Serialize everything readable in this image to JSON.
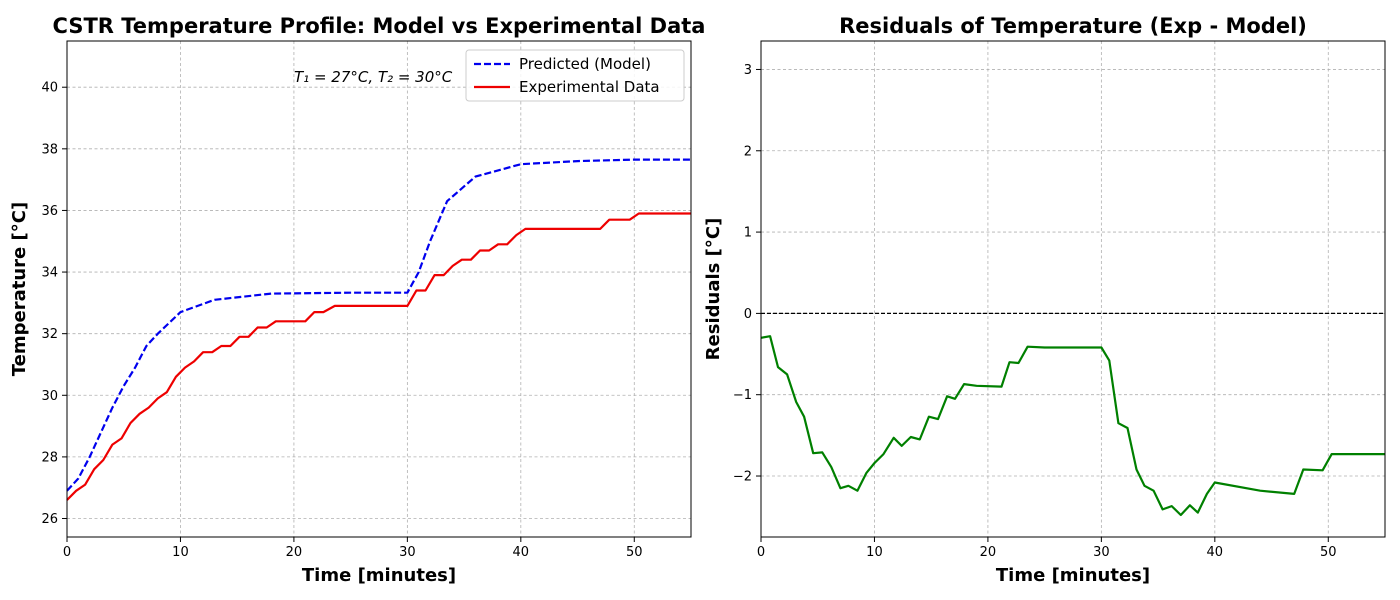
{
  "chart_data": [
    {
      "type": "line",
      "title": "CSTR Temperature Profile: Model vs Experimental Data",
      "xlabel": "Time [minutes]",
      "ylabel": "Temperature [°C]",
      "xlim": [
        0,
        55
      ],
      "ylim": [
        25.4,
        41.5
      ],
      "xticks": [
        0,
        10,
        20,
        30,
        40,
        50
      ],
      "yticks": [
        26,
        28,
        30,
        32,
        34,
        36,
        38,
        40
      ],
      "grid": true,
      "legend": "top-right",
      "annotation": "T₁ = 27°C, T₂ = 30°C",
      "series": [
        {
          "name": "Predicted (Model)",
          "color": "#0000ee",
          "style": "dashed",
          "x": [
            0,
            1,
            2,
            3,
            4,
            5,
            6,
            7,
            8,
            10,
            13,
            18,
            25,
            30,
            31,
            32,
            33.5,
            36,
            40,
            45,
            50,
            55
          ],
          "y": [
            26.9,
            27.3,
            28.0,
            28.8,
            29.6,
            30.3,
            30.9,
            31.6,
            32.0,
            32.7,
            33.1,
            33.3,
            33.33,
            33.33,
            34.0,
            35.0,
            36.3,
            37.1,
            37.5,
            37.6,
            37.65,
            37.65
          ]
        },
        {
          "name": "Experimental Data",
          "color": "#ee0000",
          "style": "solid",
          "x": [
            0,
            0.8,
            1.6,
            2.4,
            3.2,
            4.0,
            4.8,
            5.6,
            6.4,
            7.2,
            8.0,
            8.8,
            9.6,
            10.4,
            11.2,
            12.0,
            12.8,
            13.6,
            14.4,
            15.2,
            16.0,
            16.8,
            17.6,
            18.4,
            21.0,
            21.8,
            22.6,
            23.6,
            30.0,
            30.8,
            31.6,
            32.4,
            33.2,
            34.0,
            34.8,
            35.6,
            36.4,
            37.2,
            38.0,
            38.8,
            39.6,
            40.4,
            47.0,
            47.8,
            49.6,
            50.4,
            55.0
          ],
          "y": [
            26.6,
            26.9,
            27.1,
            27.6,
            27.9,
            28.4,
            28.6,
            29.1,
            29.4,
            29.6,
            29.9,
            30.1,
            30.6,
            30.9,
            31.1,
            31.4,
            31.4,
            31.6,
            31.6,
            31.9,
            31.9,
            32.2,
            32.2,
            32.4,
            32.4,
            32.7,
            32.7,
            32.9,
            32.9,
            33.4,
            33.4,
            33.9,
            33.9,
            34.2,
            34.4,
            34.4,
            34.7,
            34.7,
            34.9,
            34.9,
            35.2,
            35.4,
            35.4,
            35.7,
            35.7,
            35.9,
            35.9
          ]
        }
      ]
    },
    {
      "type": "line",
      "title": "Residuals of Temperature (Exp - Model)",
      "xlabel": "Time [minutes]",
      "ylabel": "Residuals [°C]",
      "xlim": [
        0,
        55
      ],
      "ylim": [
        -2.75,
        3.35
      ],
      "xticks": [
        0,
        10,
        20,
        30,
        40,
        50
      ],
      "yticks": [
        -2,
        -1,
        0,
        1,
        2,
        3
      ],
      "ytick_labels": [
        "−2",
        "−1",
        "0",
        "1",
        "2",
        "3"
      ],
      "grid": true,
      "reference_line": 0,
      "series": [
        {
          "color": "#008000",
          "style": "solid",
          "x": [
            0,
            0.8,
            1.5,
            2.3,
            3.1,
            3.8,
            4.6,
            5.4,
            6.2,
            7.0,
            7.7,
            8.5,
            9.3,
            10.0,
            10.8,
            11.7,
            12.4,
            13.2,
            14.0,
            14.8,
            15.6,
            16.4,
            17.1,
            17.9,
            19.0,
            21.2,
            21.9,
            22.7,
            23.5,
            25.0,
            30.0,
            30.7,
            31.5,
            32.3,
            33.1,
            33.8,
            34.6,
            35.4,
            36.2,
            37.0,
            37.8,
            38.5,
            39.3,
            40.0,
            44.0,
            47.0,
            47.8,
            49.5,
            50.3,
            55.0
          ],
          "y": [
            -0.3,
            -0.28,
            -0.66,
            -0.75,
            -1.09,
            -1.27,
            -1.72,
            -1.71,
            -1.89,
            -2.15,
            -2.12,
            -2.18,
            -1.96,
            -1.84,
            -1.73,
            -1.53,
            -1.63,
            -1.52,
            -1.55,
            -1.27,
            -1.3,
            -1.02,
            -1.05,
            -0.87,
            -0.89,
            -0.9,
            -0.6,
            -0.61,
            -0.41,
            -0.42,
            -0.42,
            -0.58,
            -1.35,
            -1.41,
            -1.92,
            -2.12,
            -2.18,
            -2.41,
            -2.37,
            -2.48,
            -2.36,
            -2.45,
            -2.22,
            -2.08,
            -2.18,
            -2.22,
            -1.92,
            -1.93,
            -1.73,
            -1.73
          ]
        }
      ]
    }
  ]
}
